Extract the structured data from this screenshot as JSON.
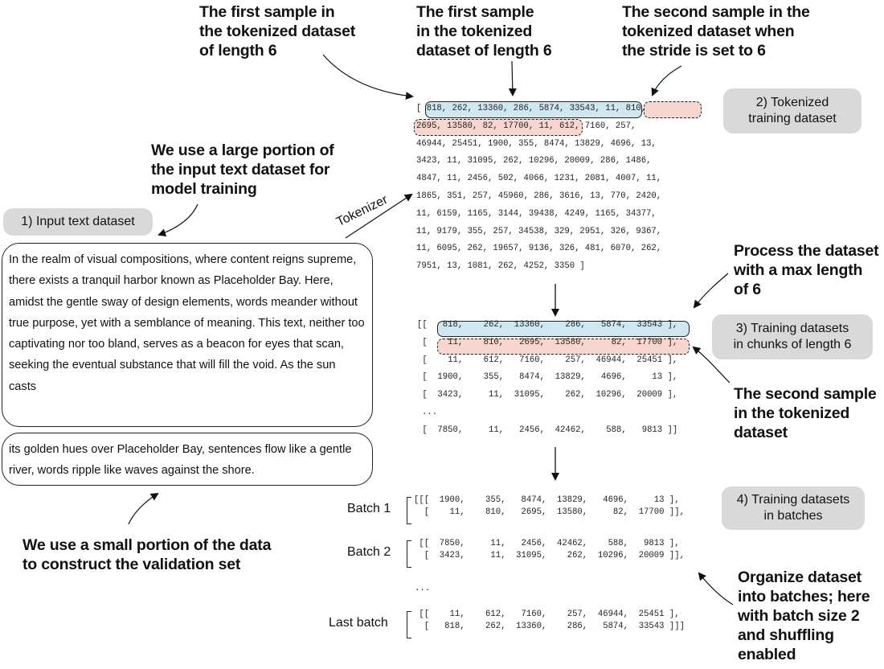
{
  "annotations": {
    "first_sample_left": "The first sample in\nthe tokenized dataset\nof length 6",
    "first_sample_mid": "The first sample\nin the tokenized\ndataset of length 6",
    "second_sample_top": "The second sample in the\ntokenized dataset when\nthe stride is set to 6",
    "large_portion": "We use a large portion of\nthe input text dataset for\nmodel training",
    "process_dataset": "Process the dataset\nwith a max length\nof 6",
    "second_sample_mid": "The second sample\nin the tokenized\ndataset",
    "small_portion": "We use a small portion of the data\nto construct the validation set",
    "organize_batches": "Organize dataset\ninto batches; here\nwith batch size 2\nand shuffling\nenabled"
  },
  "labels": {
    "input_text": "1) Input text dataset",
    "tokenized": "2) Tokenized\ntraining dataset",
    "chunks": "3) Training datasets\nin chunks of length 6",
    "batches": "4) Training datasets\nin batches",
    "tokenizer": "Tokenizer"
  },
  "input_text": {
    "training": "In the realm of visual compositions, where content reigns supreme, there exists a tranquil harbor known as Placeholder Bay. Here, amidst the gentle sway of design elements, words meander without true purpose, yet with a semblance of meaning. This text, neither too captivating nor too bland, serves as a beacon for eyes that scan, seeking the eventual substance that will fill the void. As the sun casts",
    "validation": "its golden hues over Placeholder Bay, sentences flow like a gentle river, words ripple like waves against the shore."
  },
  "tokenized_lines": [
    "[ 818, 262, 13360, 286, 5874, 33543, 11, 810,",
    "2695, 13580, 82, 17700, 11, 612, 7160, 257,",
    "46944, 25451, 1900, 355, 8474, 13829, 4696, 13,",
    "3423, 11, 31095, 262, 10296, 20009, 286, 1486,",
    "4847, 11, 2456, 502, 4066, 1231, 2081, 4007, 11,",
    "1865, 351, 257, 45960, 286, 3616, 13, 770, 2420,",
    "11, 6159, 1165, 3144, 39438, 4249, 1165, 34377,",
    "11, 9179, 355, 257, 34538, 329, 2951, 326, 9367,",
    "11, 6095, 262, 19657, 9136, 326, 481, 6070, 262,",
    "7951, 13, 1081, 262, 4252, 3350 ]"
  ],
  "chunks": {
    "open": "[[",
    "row_open": "[",
    "row_close": "],",
    "ellipsis": "...",
    "final_close": "]]",
    "rows": [
      [
        "818",
        "262",
        "13360",
        "286",
        "5874",
        "33543"
      ],
      [
        "11",
        "810",
        "2695",
        "13580",
        "82",
        "17700"
      ],
      [
        "11",
        "612",
        "7160",
        "257",
        "46944",
        "25451"
      ],
      [
        "1900",
        "355",
        "8474",
        "13829",
        "4696",
        "13"
      ],
      [
        "3423",
        "11",
        "31095",
        "262",
        "10296",
        "20009"
      ],
      [
        "7850",
        "11",
        "2456",
        "42462",
        "588",
        "9813"
      ]
    ]
  },
  "batches": [
    {
      "label": "Batch 1",
      "rows": [
        [
          "1900",
          "355",
          "8474",
          "13829",
          "4696",
          "13"
        ],
        [
          "11",
          "810",
          "2695",
          "13580",
          "82",
          "17700"
        ]
      ]
    },
    {
      "label": "Batch 2",
      "rows": [
        [
          "7850",
          "11",
          "2456",
          "42462",
          "588",
          "9813"
        ],
        [
          "3423",
          "11",
          "31095",
          "262",
          "10296",
          "20009"
        ]
      ]
    },
    {
      "label": "Last batch",
      "rows": [
        [
          "11",
          "612",
          "7160",
          "257",
          "46944",
          "25451"
        ],
        [
          "818",
          "262",
          "13360",
          "286",
          "5874",
          "33543"
        ]
      ]
    }
  ],
  "batch_ellipsis": "...",
  "colors": {
    "first_sample_fill": "#cfe7f0",
    "second_sample_fill": "#f7d6d0",
    "label_fill": "#d9d9d9"
  }
}
